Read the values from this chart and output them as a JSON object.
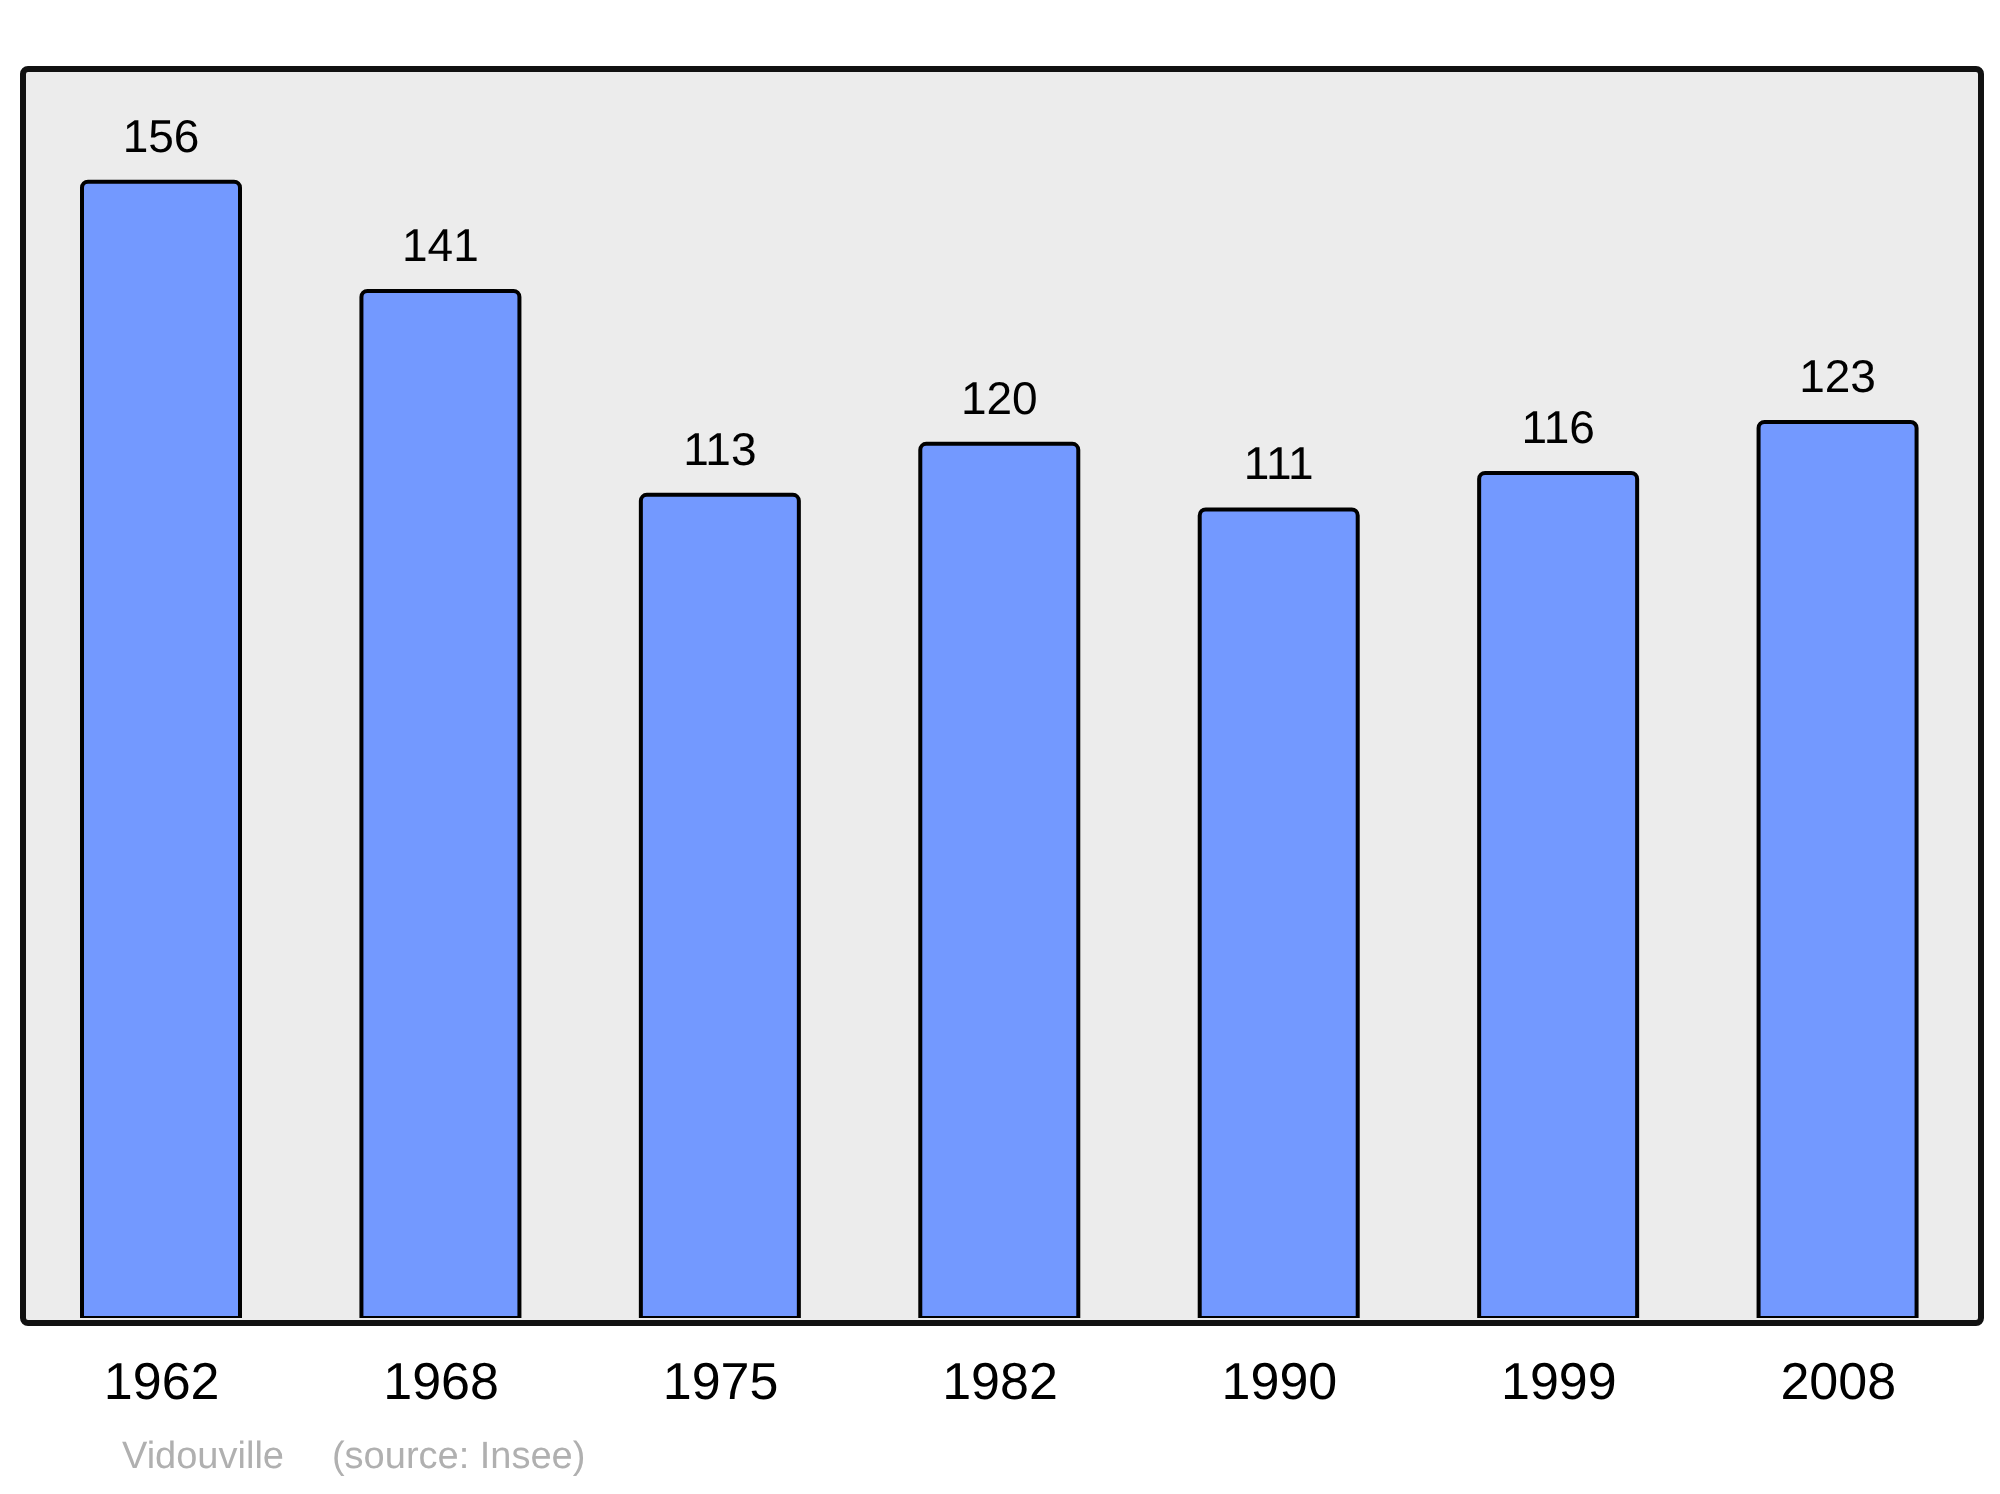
{
  "chart_data": {
    "type": "bar",
    "categories": [
      "1962",
      "1968",
      "1975",
      "1982",
      "1990",
      "1999",
      "2008"
    ],
    "values": [
      156,
      141,
      113,
      120,
      111,
      116,
      123
    ],
    "color": "#7399ff",
    "data_labels": true,
    "annotations": [
      "Vidouville",
      "(source: Insee)"
    ]
  }
}
